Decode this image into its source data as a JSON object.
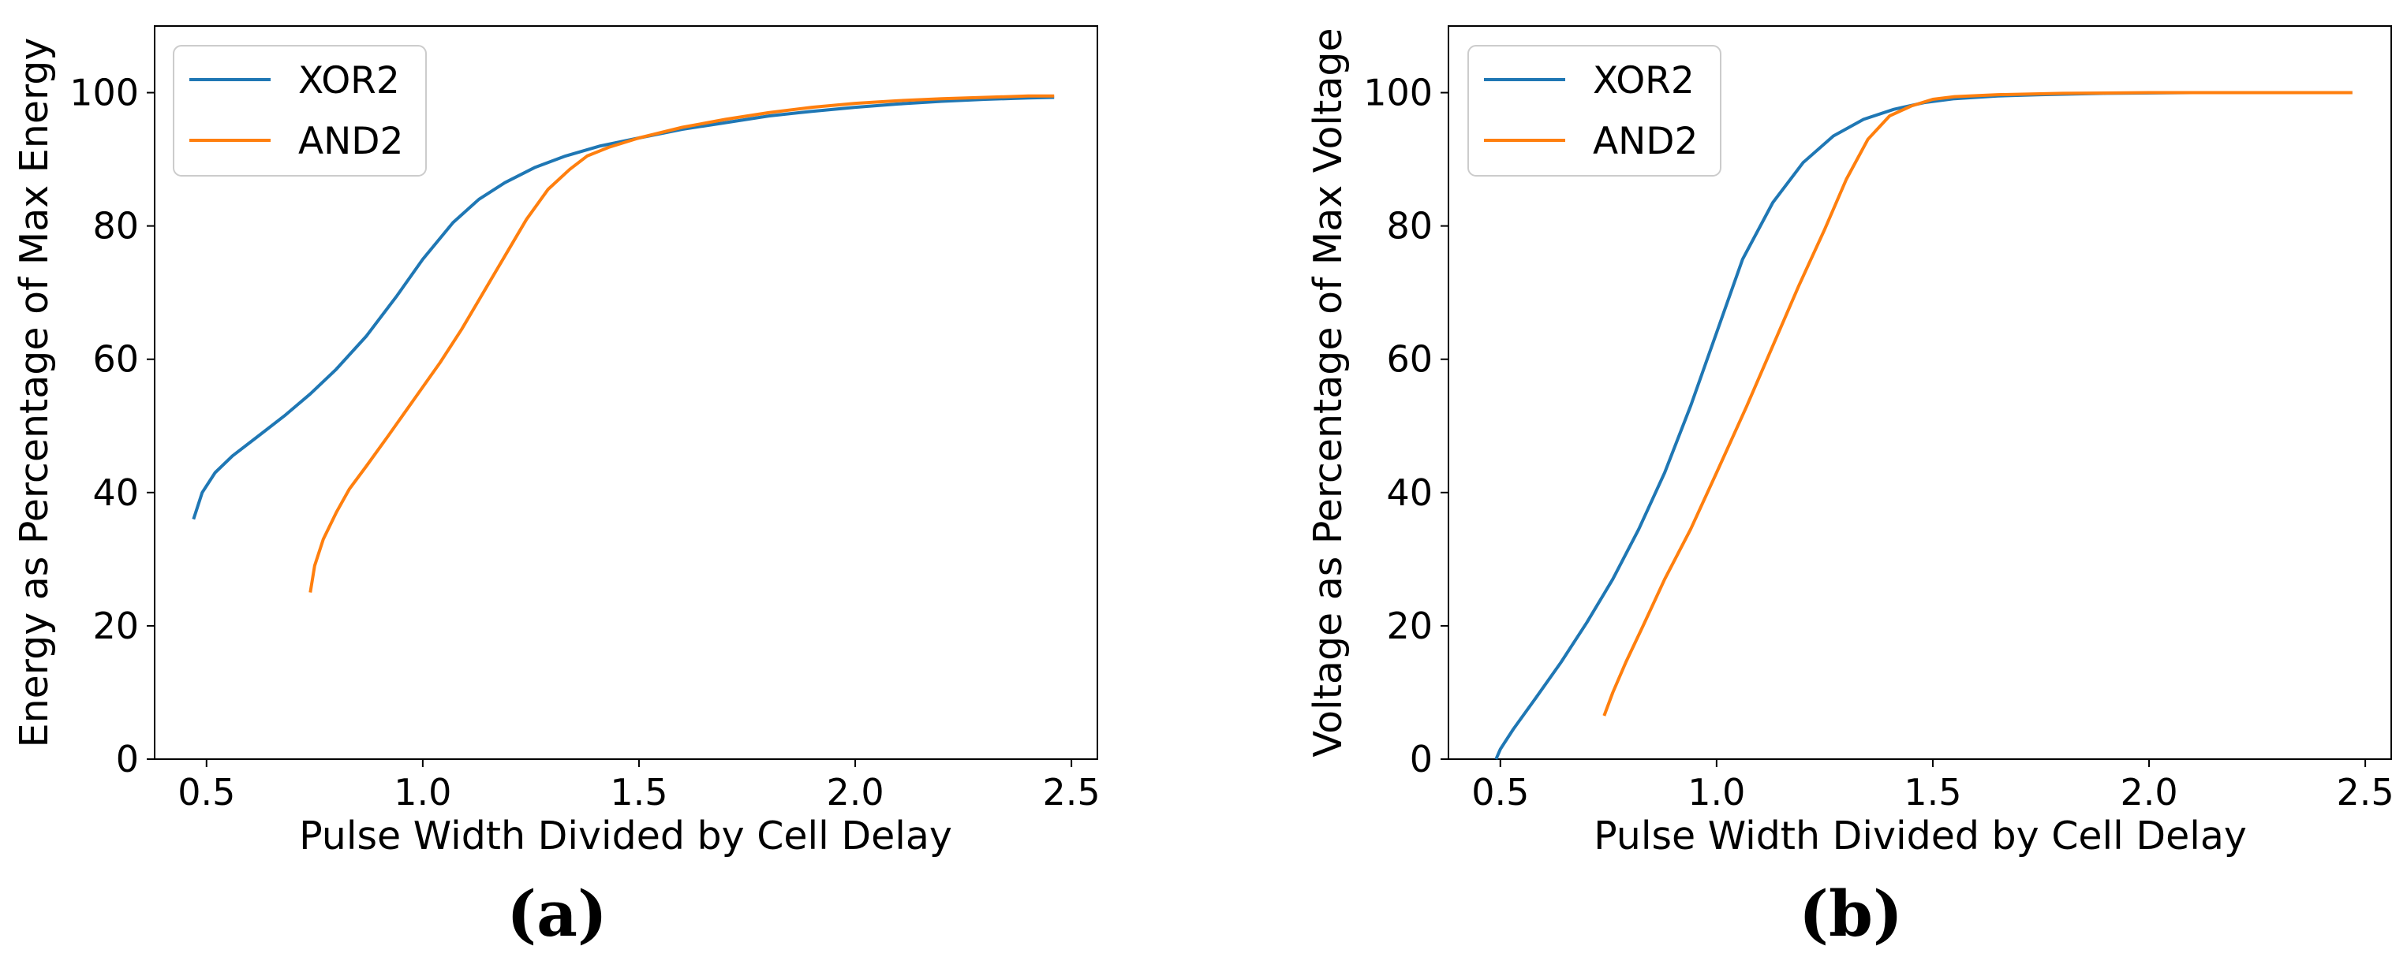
{
  "chart_data": [
    {
      "type": "line",
      "panel_label": "(a)",
      "title": "",
      "xlabel": "Pulse Width Divided by Cell Delay",
      "ylabel": "Energy as Percentage of Max Energy",
      "xlim": [
        0.38,
        2.56
      ],
      "ylim": [
        0,
        110
      ],
      "xticks": [
        0.5,
        1.0,
        1.5,
        2.0,
        2.5
      ],
      "xtick_labels": [
        "0.5",
        "1.0",
        "1.5",
        "2.0",
        "2.5"
      ],
      "yticks": [
        0,
        20,
        40,
        60,
        80,
        100
      ],
      "ytick_labels": [
        "0",
        "20",
        "40",
        "60",
        "80",
        "100"
      ],
      "legend_position": "top-left",
      "series": [
        {
          "name": "XOR2",
          "color": "#1f77b4",
          "x": [
            0.47,
            0.49,
            0.52,
            0.56,
            0.62,
            0.68,
            0.74,
            0.8,
            0.87,
            0.94,
            1.0,
            1.07,
            1.13,
            1.19,
            1.26,
            1.33,
            1.41,
            1.5,
            1.6,
            1.7,
            1.8,
            1.9,
            2.0,
            2.1,
            2.2,
            2.3,
            2.4,
            2.46
          ],
          "y": [
            36,
            40,
            43,
            45.5,
            48.5,
            51.5,
            54.8,
            58.5,
            63.5,
            69.5,
            75,
            80.5,
            84,
            86.5,
            88.8,
            90.5,
            92,
            93.2,
            94.5,
            95.5,
            96.5,
            97.2,
            97.8,
            98.3,
            98.7,
            99,
            99.2,
            99.3
          ]
        },
        {
          "name": "AND2",
          "color": "#ff7f0e",
          "x": [
            0.74,
            0.75,
            0.77,
            0.8,
            0.83,
            0.87,
            0.92,
            0.98,
            1.04,
            1.09,
            1.14,
            1.19,
            1.24,
            1.29,
            1.34,
            1.38,
            1.43,
            1.5,
            1.6,
            1.7,
            1.8,
            1.9,
            2.0,
            2.1,
            2.2,
            2.3,
            2.4,
            2.46
          ],
          "y": [
            25,
            29,
            33,
            37,
            40.5,
            44,
            48.5,
            54,
            59.5,
            64.5,
            70,
            75.5,
            81,
            85.5,
            88.5,
            90.5,
            91.8,
            93.2,
            94.8,
            96,
            97,
            97.8,
            98.4,
            98.8,
            99.1,
            99.3,
            99.5,
            99.5
          ]
        }
      ]
    },
    {
      "type": "line",
      "panel_label": "(b)",
      "title": "",
      "xlabel": "Pulse Width Divided by Cell Delay",
      "ylabel": "Voltage as Percentage of Max Voltage",
      "xlim": [
        0.38,
        2.56
      ],
      "ylim": [
        0,
        110
      ],
      "xticks": [
        0.5,
        1.0,
        1.5,
        2.0,
        2.5
      ],
      "xtick_labels": [
        "0.5",
        "1.0",
        "1.5",
        "2.0",
        "2.5"
      ],
      "yticks": [
        0,
        20,
        40,
        60,
        80,
        100
      ],
      "ytick_labels": [
        "0",
        "20",
        "40",
        "60",
        "80",
        "100"
      ],
      "legend_position": "top-left",
      "series": [
        {
          "name": "XOR2",
          "color": "#1f77b4",
          "x": [
            0.49,
            0.5,
            0.53,
            0.58,
            0.64,
            0.7,
            0.76,
            0.82,
            0.88,
            0.94,
            1.0,
            1.06,
            1.13,
            1.2,
            1.27,
            1.34,
            1.41,
            1.48,
            1.55,
            1.65,
            1.75,
            1.9,
            2.1,
            2.3,
            2.47
          ],
          "y": [
            0,
            1.5,
            4.5,
            9,
            14.5,
            20.5,
            27,
            34.5,
            43,
            53,
            64,
            75,
            83.5,
            89.5,
            93.5,
            96,
            97.5,
            98.5,
            99.1,
            99.5,
            99.7,
            99.9,
            100,
            100,
            100
          ]
        },
        {
          "name": "AND2",
          "color": "#ff7f0e",
          "x": [
            0.74,
            0.76,
            0.79,
            0.83,
            0.88,
            0.94,
            1.0,
            1.07,
            1.13,
            1.19,
            1.25,
            1.3,
            1.35,
            1.4,
            1.45,
            1.5,
            1.55,
            1.65,
            1.8,
            2.0,
            2.2,
            2.47
          ],
          "y": [
            6.5,
            10,
            14.5,
            20,
            27,
            34.5,
            43,
            53,
            62,
            71,
            79.5,
            87,
            93,
            96.5,
            98,
            99,
            99.4,
            99.7,
            99.9,
            100,
            100,
            100
          ]
        }
      ]
    }
  ]
}
